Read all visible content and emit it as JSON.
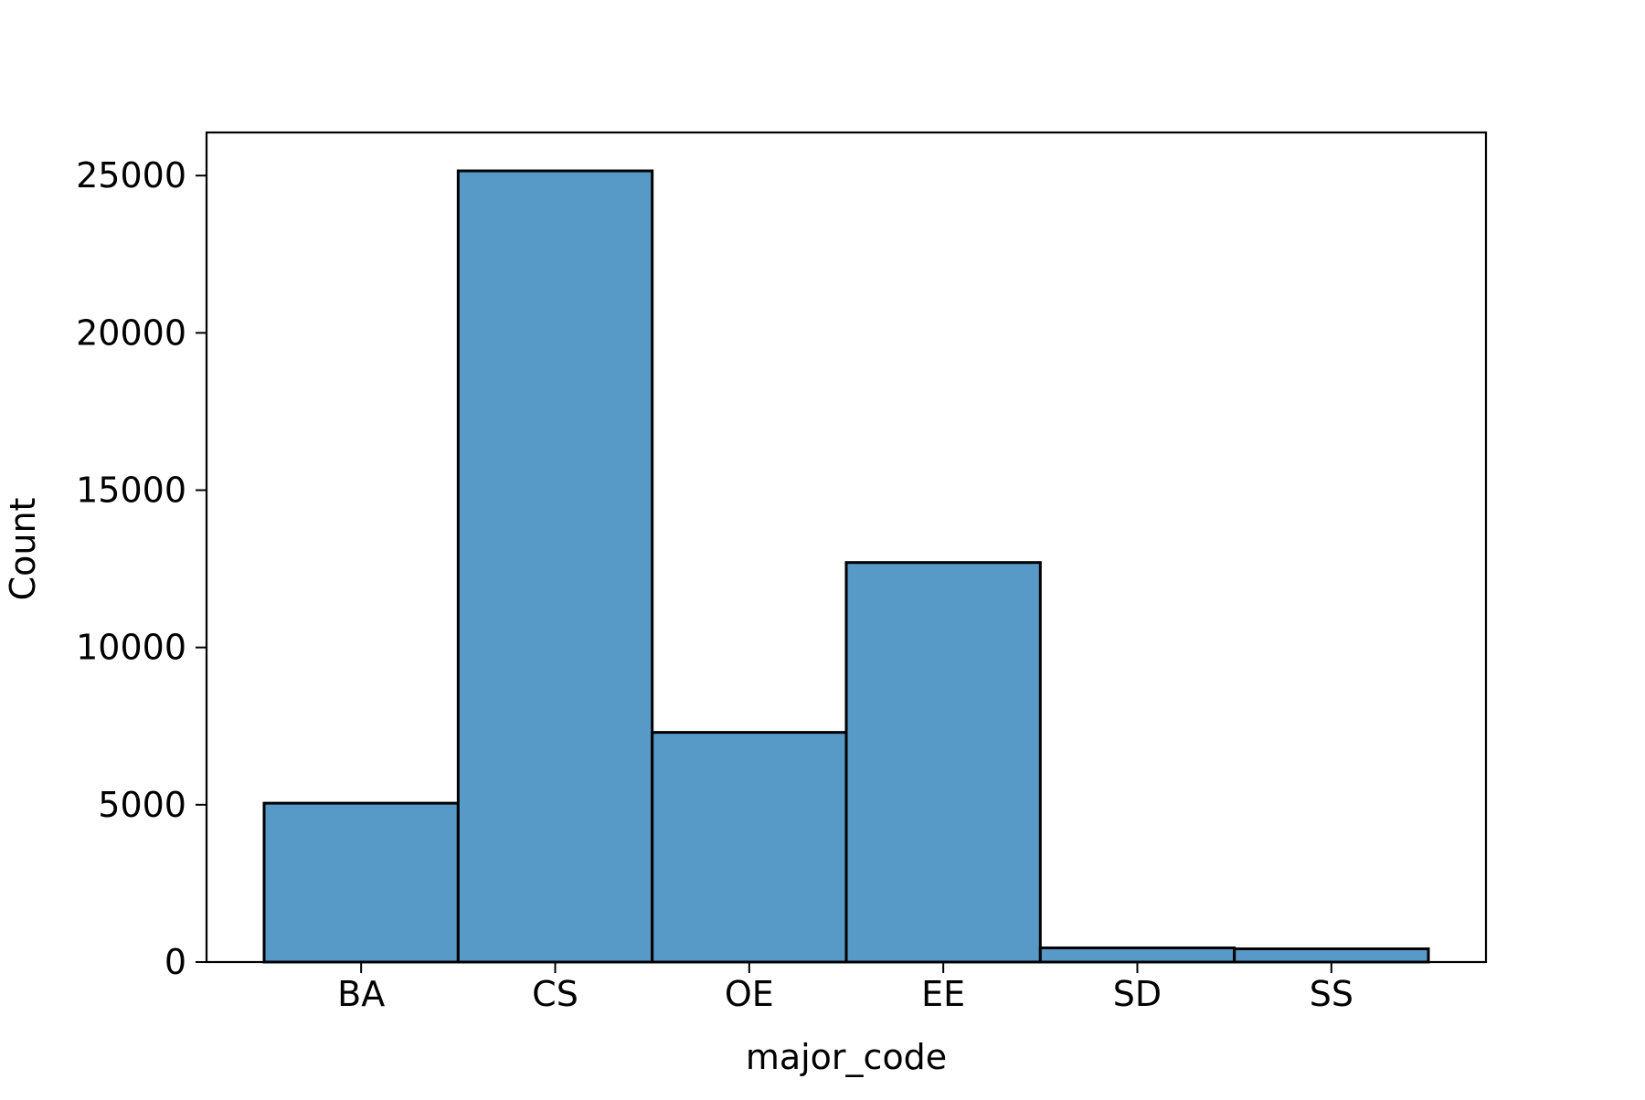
{
  "chart_data": {
    "type": "bar",
    "title": "",
    "xlabel": "major_code",
    "ylabel": "Count",
    "categories": [
      "BA",
      "CS",
      "OE",
      "EE",
      "SD",
      "SS"
    ],
    "values": [
      5050,
      25150,
      7300,
      12700,
      450,
      420
    ],
    "ylim": [
      0,
      26370
    ],
    "yticks": [
      0,
      5000,
      10000,
      15000,
      20000,
      25000
    ],
    "ytick_labels": [
      "0",
      "5000",
      "10000",
      "15000",
      "20000",
      "25000"
    ],
    "grid": false,
    "legend": "none",
    "colors": {
      "bar_fill": "#5799c7",
      "bar_edge": "#000000",
      "axis": "#000000",
      "background": "#ffffff"
    }
  }
}
